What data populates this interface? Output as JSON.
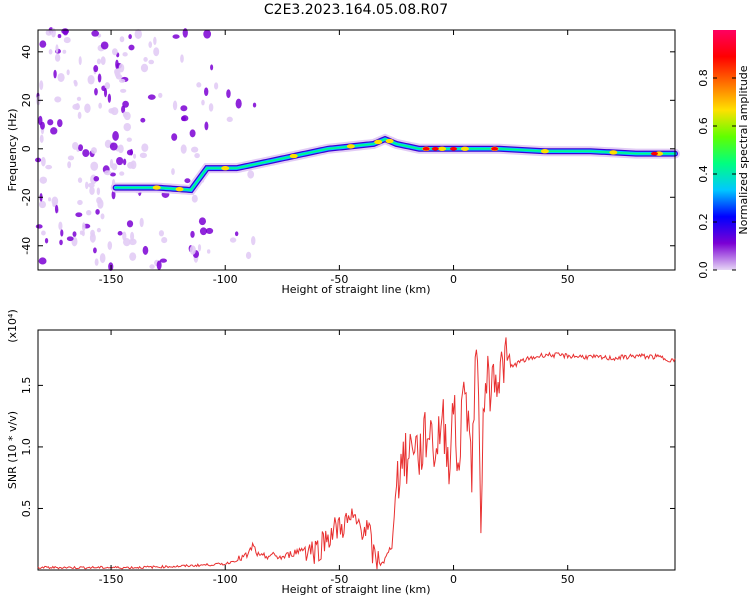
{
  "title": "C2E3.2023.164.05.08.R07",
  "chart_data": [
    {
      "type": "heatmap",
      "xlabel": "Height of straight line (km)",
      "ylabel": "Frequency (Hz)",
      "xlim": [
        -182,
        97
      ],
      "ylim": [
        -50,
        49
      ],
      "xticks": [
        -150,
        -100,
        -50,
        0,
        50
      ],
      "yticks": [
        -40,
        -20,
        0,
        20,
        40
      ],
      "colorbar": {
        "label": "Normalized spectral amplitude",
        "range": [
          0,
          1
        ],
        "ticks": [
          "0.0",
          "0.2",
          "0.4",
          "0.6",
          "0.8"
        ],
        "colors": [
          "#e6d6f5",
          "#7b00d4",
          "#0000ff",
          "#00c8ff",
          "#00ff80",
          "#60ff00",
          "#ffe000",
          "#ff7000",
          "#ff0000",
          "#ff0060"
        ]
      },
      "ridge": {
        "x": [
          -148,
          -130,
          -115,
          -108,
          -95,
          -80,
          -65,
          -55,
          -45,
          -35,
          -30,
          -25,
          -15,
          -5,
          5,
          20,
          40,
          60,
          80,
          97
        ],
        "y": [
          -16,
          -16,
          -17,
          -8,
          -8,
          -5,
          -2,
          0,
          1,
          2,
          4,
          2,
          0,
          0,
          0,
          0,
          -1,
          -1,
          -2,
          -2
        ]
      },
      "grid": false
    },
    {
      "type": "line",
      "xlabel": "Height of straight line (km)",
      "ylabel": "SNR (10 * v/v)",
      "y_multiplier": "(x10⁴)",
      "xlim": [
        -182,
        97
      ],
      "ylim": [
        0,
        1.95
      ],
      "xticks": [
        -150,
        -100,
        -50,
        0,
        50
      ],
      "yticks": [
        "0.5",
        "1.0",
        "1.5"
      ],
      "color": "#e83030",
      "series": [
        {
          "x": [
            -182,
            -160,
            -140,
            -120,
            -100,
            -95,
            -90,
            -88,
            -85,
            -80,
            -75,
            -70,
            -65,
            -60,
            -55,
            -50,
            -45,
            -40,
            -37,
            -35,
            -32,
            -30,
            -27,
            -25,
            -22,
            -20,
            -18,
            -15,
            -12,
            -10,
            -8,
            -5,
            -2,
            0,
            2,
            5,
            8,
            10,
            12,
            14,
            16,
            18,
            20,
            22,
            25,
            30,
            40,
            50,
            60,
            70,
            80,
            90,
            97
          ],
          "y": [
            0.02,
            0.02,
            0.02,
            0.03,
            0.05,
            0.08,
            0.12,
            0.2,
            0.1,
            0.12,
            0.1,
            0.14,
            0.18,
            0.16,
            0.28,
            0.35,
            0.4,
            0.36,
            0.3,
            0.1,
            0.06,
            0.08,
            0.2,
            0.7,
            0.95,
            0.85,
            1.1,
            0.92,
            1.1,
            1.15,
            0.95,
            1.25,
            0.9,
            1.35,
            0.8,
            1.6,
            0.8,
            1.9,
            0.5,
            1.7,
            1.45,
            1.65,
            1.55,
            1.7,
            1.65,
            1.7,
            1.75,
            1.74,
            1.73,
            1.72,
            1.74,
            1.73,
            1.7
          ]
        }
      ],
      "grid": false
    }
  ]
}
